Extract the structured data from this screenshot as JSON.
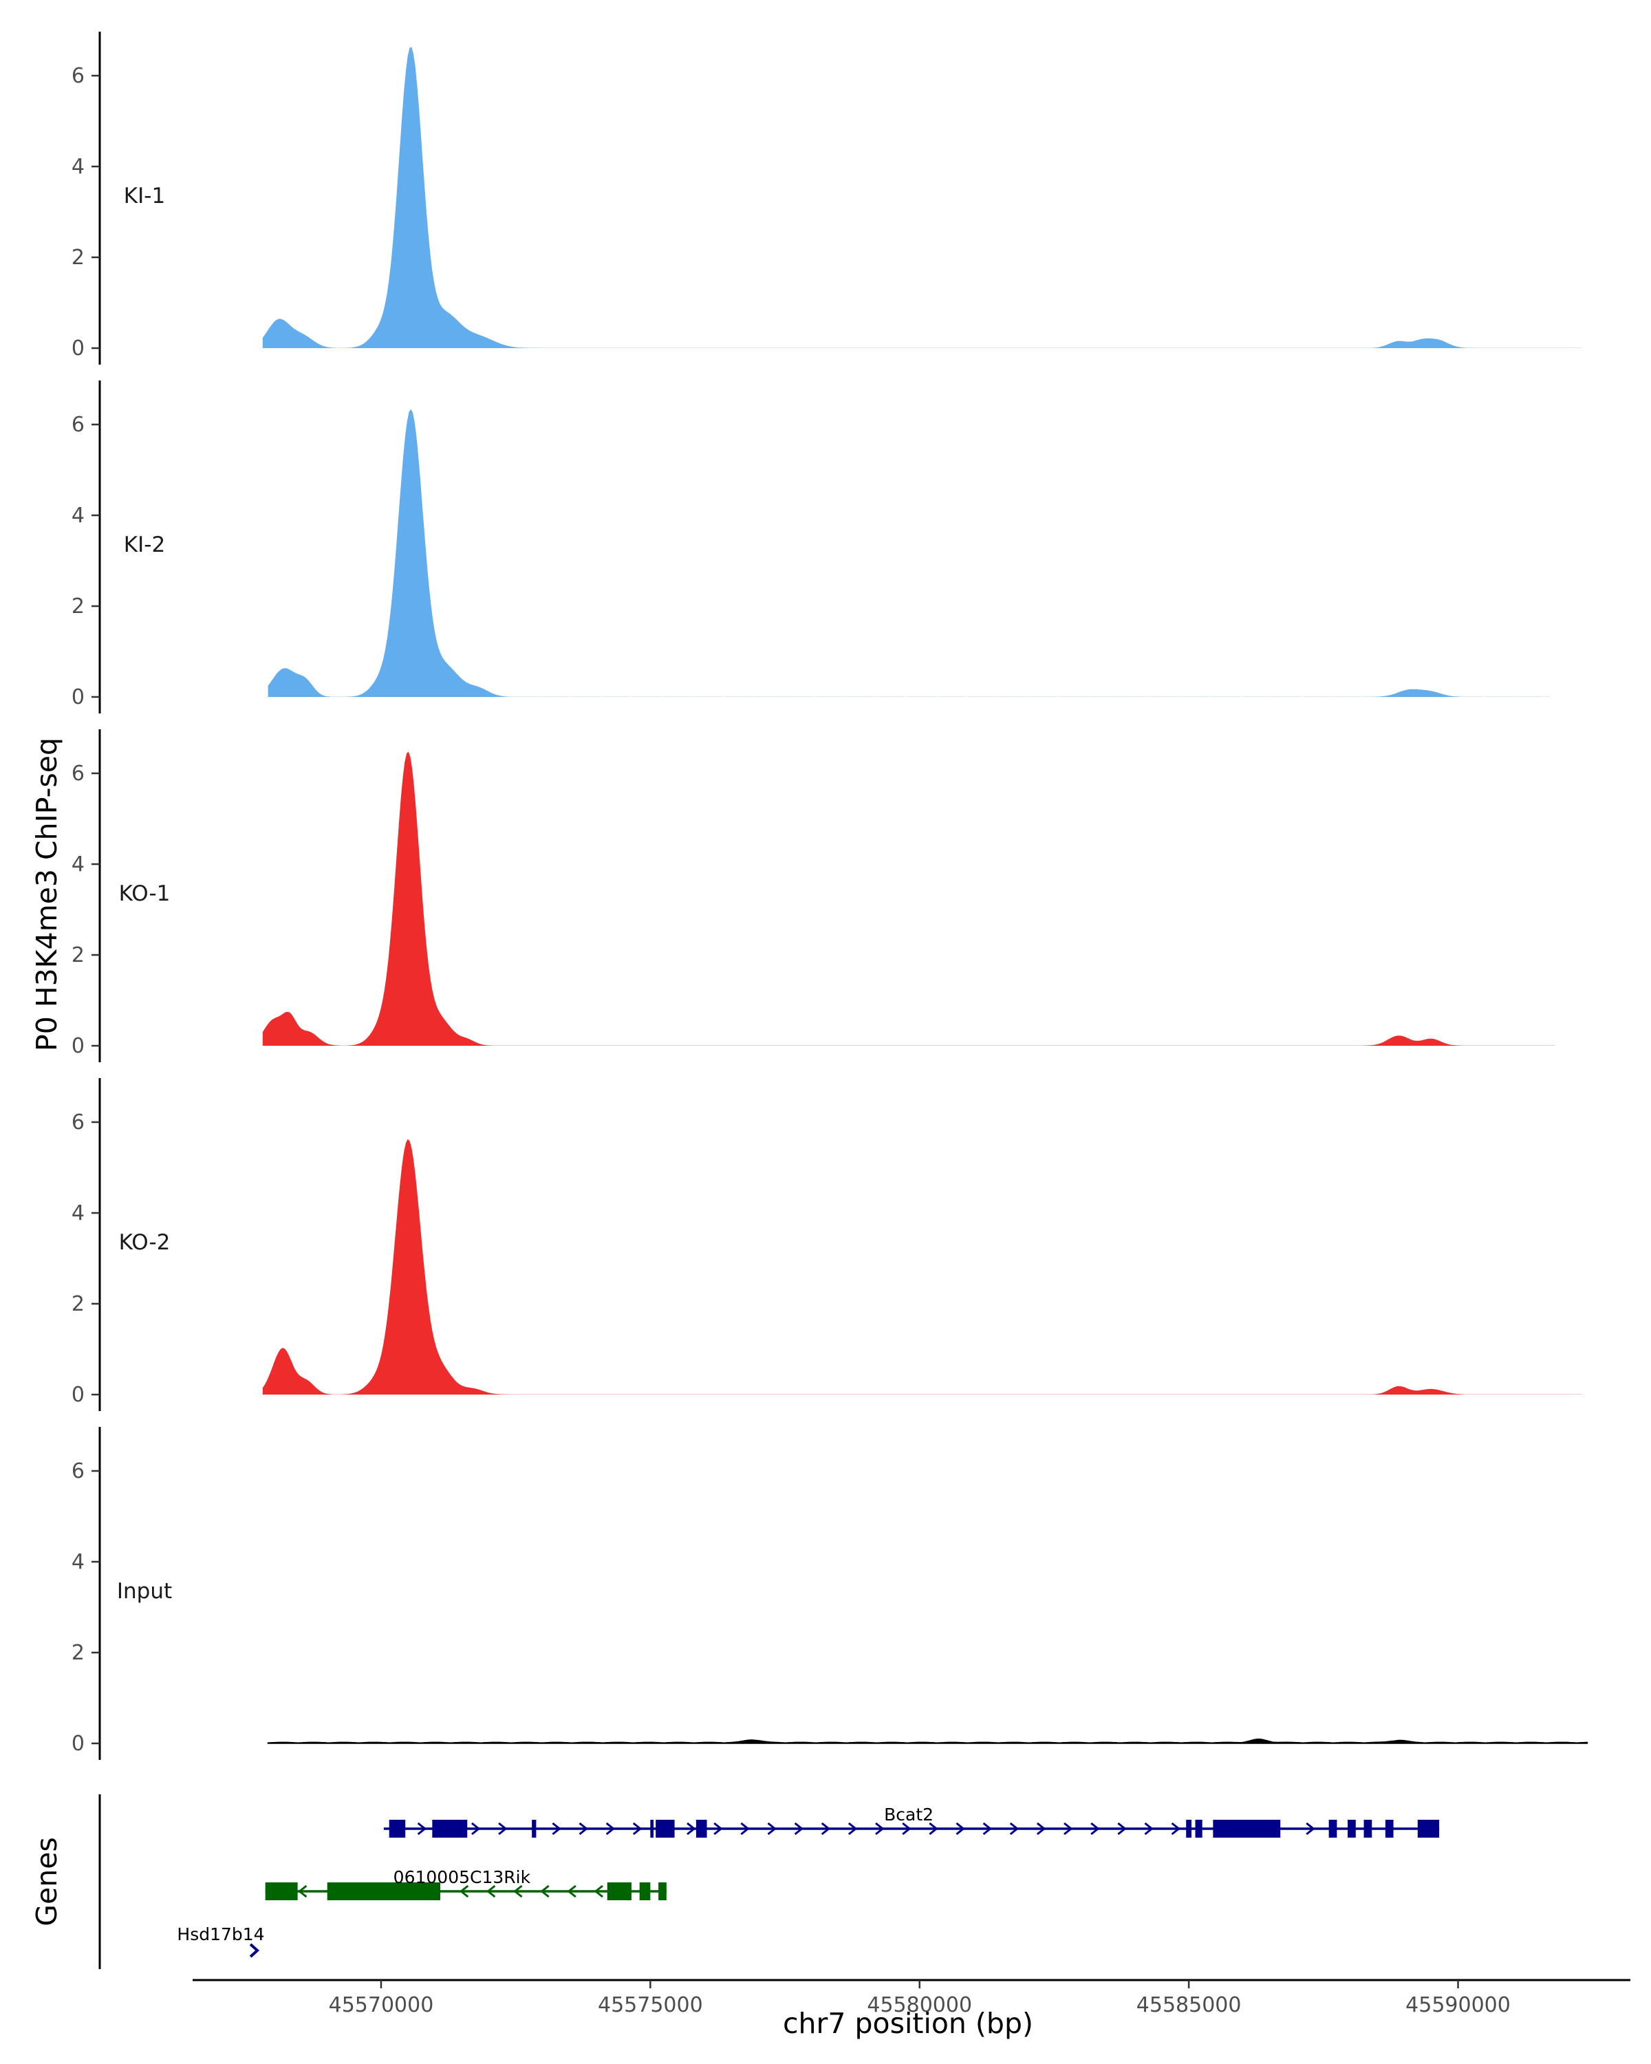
{
  "colors": {
    "ki": "#62ADED",
    "ko": "#EE2C2C",
    "input": "#000000",
    "bcat2": "#00008B",
    "gene2": "#006400",
    "axis": "#000000",
    "tick": "#333333"
  },
  "chart_data": {
    "type": "area",
    "title": "",
    "ylabel": "P0 H3K4me3 ChIP-seq",
    "xlabel": "chr7 position (bp)",
    "genes_label": "Genes",
    "xlim": [
      45566500,
      45593200
    ],
    "ylim": [
      0,
      6.9
    ],
    "y_ticks": [
      0,
      2,
      4,
      6
    ],
    "x_ticks": [
      45570000,
      45575000,
      45580000,
      45585000,
      45590000
    ],
    "x_tick_labels": [
      "45570000",
      "45575000",
      "45580000",
      "45585000",
      "45590000"
    ],
    "tracks": [
      {
        "name": "KI-1",
        "color_key": "ki",
        "peaks": [
          [
            45568100,
            0.62,
            210
          ],
          [
            45568550,
            0.25,
            200
          ],
          [
            45570000,
            0.35,
            200
          ],
          [
            45570550,
            6.6,
            220
          ],
          [
            45571200,
            0.7,
            260
          ],
          [
            45571800,
            0.25,
            300
          ],
          [
            45588900,
            0.15,
            180
          ],
          [
            45589300,
            0.12,
            150
          ],
          [
            45589600,
            0.18,
            200
          ]
        ],
        "min_level": 0.005,
        "x_start": 45567800,
        "x_end": 45592300
      },
      {
        "name": "KI-2",
        "color_key": "ki",
        "peaks": [
          [
            45568200,
            0.62,
            220
          ],
          [
            45568600,
            0.3,
            150
          ],
          [
            45570000,
            0.3,
            200
          ],
          [
            45570550,
            6.3,
            230
          ],
          [
            45571200,
            0.65,
            260
          ],
          [
            45571800,
            0.18,
            200
          ],
          [
            45589100,
            0.15,
            220
          ],
          [
            45589500,
            0.1,
            200
          ]
        ],
        "min_level": 0.004,
        "x_start": 45567900,
        "x_end": 45591700
      },
      {
        "name": "KO-1",
        "color_key": "ko",
        "peaks": [
          [
            45568000,
            0.55,
            180
          ],
          [
            45568300,
            0.55,
            130
          ],
          [
            45568650,
            0.3,
            180
          ],
          [
            45570000,
            0.35,
            200
          ],
          [
            45570500,
            6.45,
            220
          ],
          [
            45571100,
            0.55,
            220
          ],
          [
            45571600,
            0.12,
            150
          ],
          [
            45588900,
            0.22,
            200
          ],
          [
            45589500,
            0.15,
            180
          ]
        ],
        "min_level": 0.005,
        "x_start": 45567800,
        "x_end": 45591800
      },
      {
        "name": "KO-2",
        "color_key": "ko",
        "peaks": [
          [
            45568000,
            0.25,
            150
          ],
          [
            45568200,
            0.9,
            160
          ],
          [
            45568600,
            0.3,
            160
          ],
          [
            45569900,
            0.25,
            200
          ],
          [
            45570500,
            5.6,
            240
          ],
          [
            45571100,
            0.55,
            230
          ],
          [
            45571700,
            0.12,
            200
          ],
          [
            45588900,
            0.18,
            170
          ],
          [
            45589500,
            0.12,
            220
          ]
        ],
        "min_level": 0.005,
        "x_start": 45567800,
        "x_end": 45592300
      },
      {
        "name": "Input",
        "color_key": "input",
        "peaks": [
          [
            45576900,
            0.06,
            150
          ],
          [
            45586300,
            0.07,
            150
          ],
          [
            45588900,
            0.05,
            150
          ]
        ],
        "min_level": 0.025,
        "x_start": 45567900,
        "x_end": 45592400
      }
    ],
    "genes": [
      {
        "name": "Bcat2",
        "color_key": "bcat2",
        "strand": "+",
        "start": 45570050,
        "end": 45589650,
        "exons": [
          [
            45570150,
            45570450
          ],
          [
            45570950,
            45571600
          ],
          [
            45572800,
            45572880
          ],
          [
            45575000,
            45575060
          ],
          [
            45575100,
            45575450
          ],
          [
            45575850,
            45576050
          ],
          [
            45584950,
            45585050
          ],
          [
            45585120,
            45585250
          ],
          [
            45585450,
            45586700
          ],
          [
            45587600,
            45587750
          ],
          [
            45587950,
            45588100
          ],
          [
            45588250,
            45588400
          ],
          [
            45588650,
            45588800
          ],
          [
            45589250,
            45589650
          ]
        ]
      },
      {
        "name": "0610005C13Rik",
        "color_key": "gene2",
        "strand": "-",
        "start": 45567850,
        "end": 45575300,
        "exons": [
          [
            45567850,
            45568450
          ],
          [
            45569000,
            45571100
          ],
          [
            45574200,
            45574650
          ],
          [
            45574800,
            45575000
          ],
          [
            45575150,
            45575300
          ]
        ]
      },
      {
        "name": "Hsd17b14",
        "color_key": "bcat2",
        "strand": "+",
        "start": 45567600,
        "end": 45567750,
        "exons": []
      }
    ]
  }
}
